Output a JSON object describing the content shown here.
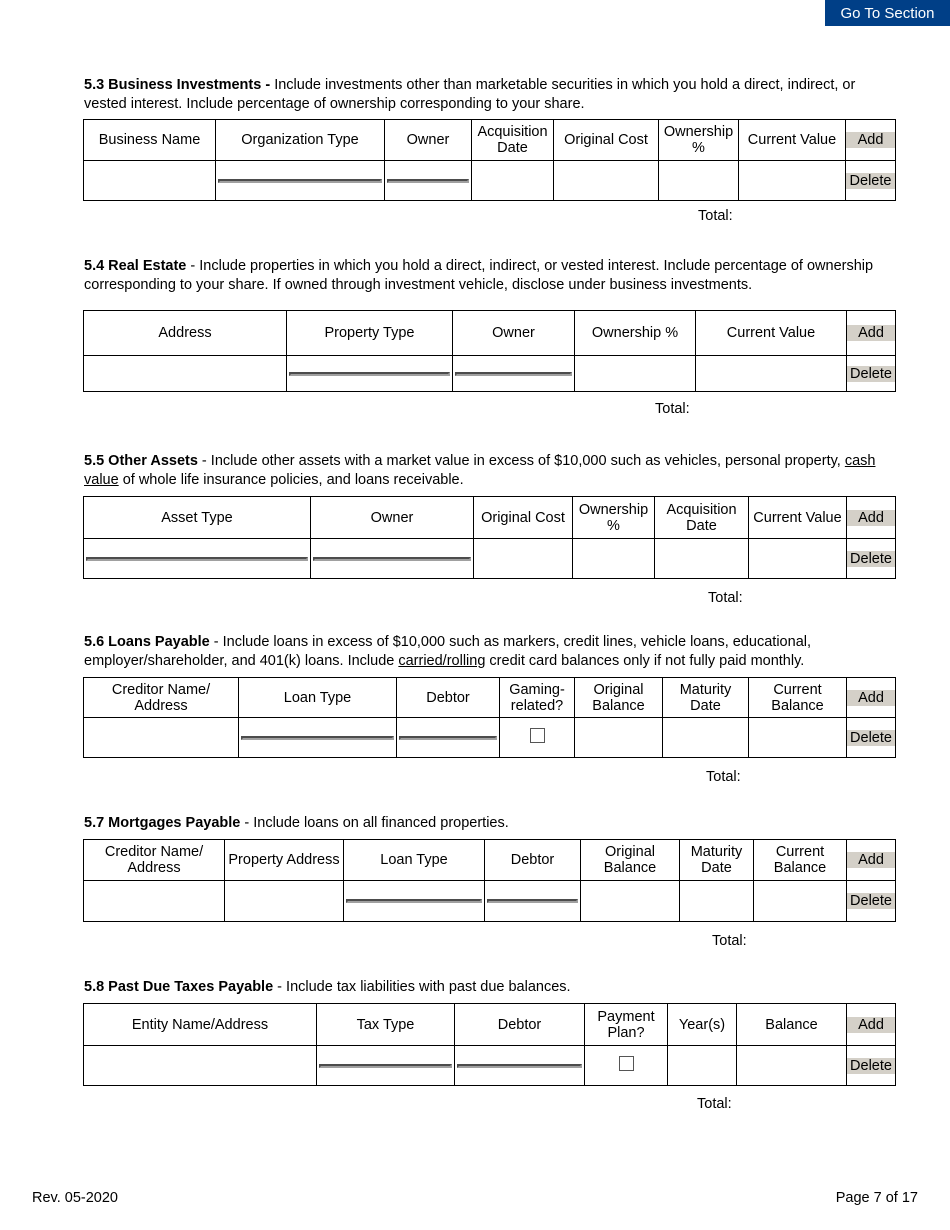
{
  "goto_label": "Go To Section",
  "add_label": "Add",
  "delete_label": "Delete",
  "total_label": "Total:",
  "footer": {
    "rev": "Rev. 05-2020",
    "page": "Page 7 of 17"
  },
  "sections": [
    {
      "title": "5.3 Business Investments -",
      "desc": " Include investments other than marketable securities in which you hold a direct, indirect, or vested interest.  Include percentage of ownership corresponding to your share.",
      "columns": [
        "Business Name",
        "Organization Type",
        "Owner",
        "Acquisition Date",
        "Original Cost",
        "Ownership %",
        "Current Value"
      ],
      "row": [
        "blank",
        "select",
        "select",
        "blank",
        "blank",
        "blank",
        "blank"
      ]
    },
    {
      "title": "5.4 Real Estate",
      "desc": " - Include properties in which you hold a direct, indirect, or vested interest.  Include percentage of ownership corresponding to your share.  If owned through investment vehicle, disclose under business investments.",
      "columns": [
        "Address",
        "Property Type",
        "Owner",
        "Ownership %",
        "Current Value"
      ],
      "row": [
        "blank",
        "select",
        "select",
        "blank",
        "blank"
      ]
    },
    {
      "title": "5.5 Other Assets",
      "desc_parts": [
        " - Include other assets with a market value in excess of $10,000 such as vehicles, personal property, ",
        "cash value",
        " of whole life insurance policies, and loans receivable."
      ],
      "columns": [
        "Asset Type",
        "Owner",
        "Original Cost",
        "Ownership %",
        "Acquisition Date",
        "Current Value"
      ],
      "row": [
        "select",
        "select",
        "blank",
        "blank",
        "blank",
        "blank"
      ]
    },
    {
      "title": "5.6 Loans Payable",
      "desc_parts": [
        " - Include loans in excess of $10,000 such as markers, credit lines, vehicle loans, educational, employer/shareholder, and 401(k) loans.  Include ",
        "carried/rolling",
        " credit card balances only if not fully paid monthly."
      ],
      "columns": [
        "Creditor Name/ Address",
        "Loan Type",
        "Debtor",
        "Gaming-related?",
        "Original Balance",
        "Maturity Date",
        "Current Balance"
      ],
      "row": [
        "blank",
        "select",
        "select",
        "checkbox",
        "blank",
        "blank",
        "blank"
      ]
    },
    {
      "title": "5.7 Mortgages Payable",
      "desc": " - Include loans on all financed properties.",
      "columns": [
        "Creditor Name/ Address",
        "Property Address",
        "Loan Type",
        "Debtor",
        "Original Balance",
        "Maturity Date",
        "Current Balance"
      ],
      "row": [
        "blank",
        "blank",
        "select",
        "select",
        "blank",
        "blank",
        "blank"
      ]
    },
    {
      "title": "5.8 Past Due Taxes Payable",
      "desc": " - Include tax liabilities with past due balances.",
      "columns": [
        "Entity Name/Address",
        "Tax Type",
        "Debtor",
        "Payment Plan?",
        "Year(s)",
        "Balance"
      ],
      "row": [
        "blank",
        "select",
        "select",
        "checkbox",
        "blank",
        "blank"
      ]
    }
  ]
}
